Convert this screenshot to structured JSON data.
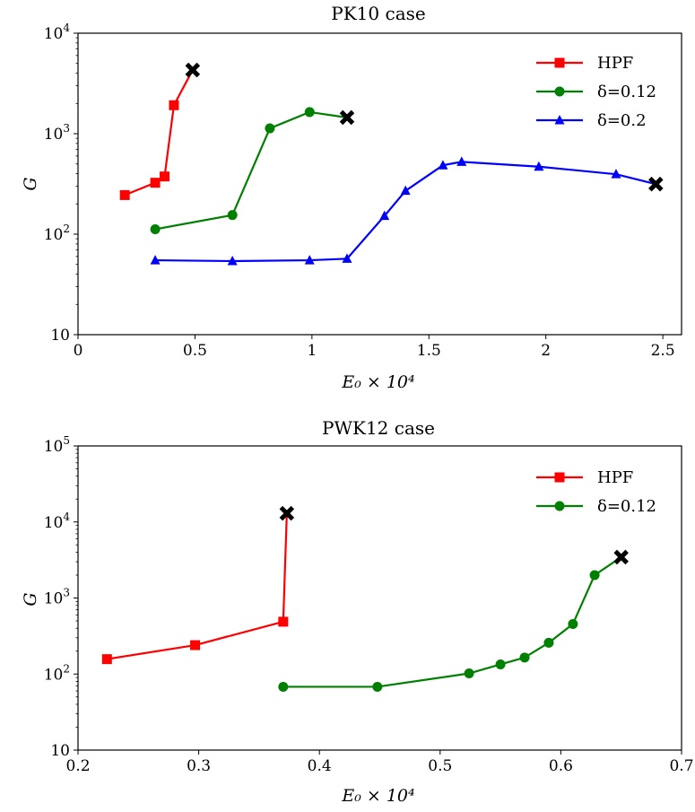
{
  "chart_data": [
    {
      "type": "line",
      "title": "PK10 case",
      "xlabel": "E₀ × 10⁴",
      "ylabel": "G",
      "yscale": "log",
      "xlim": [
        0,
        2.58
      ],
      "ylim": [
        10,
        10000
      ],
      "xticks": [
        "0",
        "0.5",
        "1",
        "1.5",
        "2",
        "2.5"
      ],
      "xtick_values": [
        0,
        0.5,
        1,
        1.5,
        2,
        2.5
      ],
      "ytick_values": [
        10,
        100,
        1000,
        10000
      ],
      "yticks": [
        {
          "base": "10",
          "exp": ""
        },
        {
          "base": "10",
          "exp": "2"
        },
        {
          "base": "10",
          "exp": "3"
        },
        {
          "base": "10",
          "exp": "4"
        }
      ],
      "legend_position": "top-right",
      "grid": false,
      "series": [
        {
          "name": "HPF",
          "color": "#ff0000",
          "marker": "square",
          "x": [
            0.2,
            0.33,
            0.37,
            0.41,
            0.49
          ],
          "y": [
            245,
            325,
            375,
            1920,
            4300
          ],
          "end_marker": "x"
        },
        {
          "name": "δ=0.12",
          "color": "#008000",
          "marker": "circle",
          "x": [
            0.33,
            0.66,
            0.82,
            0.99,
            1.15
          ],
          "y": [
            112,
            155,
            1130,
            1640,
            1450
          ],
          "end_marker": "x"
        },
        {
          "name": "δ=0.2",
          "color": "#0000ff",
          "marker": "triangle",
          "x": [
            0.33,
            0.66,
            0.99,
            1.15,
            1.31,
            1.4,
            1.56,
            1.64,
            1.97,
            2.3,
            2.47
          ],
          "y": [
            55,
            54,
            55,
            57,
            152,
            270,
            485,
            525,
            470,
            395,
            315
          ],
          "end_marker": "x"
        }
      ]
    },
    {
      "type": "line",
      "title": "PWK12 case",
      "xlabel": "E₀ × 10⁴",
      "ylabel": "G",
      "yscale": "log",
      "xlim": [
        0.2,
        0.7
      ],
      "ylim": [
        10,
        100000
      ],
      "xticks": [
        "0.2",
        "0.3",
        "0.4",
        "0.5",
        "0.6",
        "0.7"
      ],
      "xtick_values": [
        0.2,
        0.3,
        0.4,
        0.5,
        0.6,
        0.7
      ],
      "ytick_values": [
        10,
        100,
        1000,
        10000,
        100000
      ],
      "yticks": [
        {
          "base": "10",
          "exp": ""
        },
        {
          "base": "10",
          "exp": "2"
        },
        {
          "base": "10",
          "exp": "3"
        },
        {
          "base": "10",
          "exp": "4"
        },
        {
          "base": "10",
          "exp": "5"
        }
      ],
      "legend_position": "top-right",
      "grid": false,
      "series": [
        {
          "name": "HPF",
          "color": "#ff0000",
          "marker": "square",
          "x": [
            0.224,
            0.297,
            0.37,
            0.373
          ],
          "y": [
            157,
            240,
            488,
            13000
          ],
          "end_marker": "x"
        },
        {
          "name": "δ=0.12",
          "color": "#008000",
          "marker": "circle",
          "x": [
            0.37,
            0.448,
            0.524,
            0.55,
            0.57,
            0.59,
            0.61,
            0.628,
            0.65
          ],
          "y": [
            68,
            68,
            102,
            134,
            165,
            258,
            455,
            2000,
            3450
          ],
          "end_marker": "x"
        }
      ]
    }
  ]
}
